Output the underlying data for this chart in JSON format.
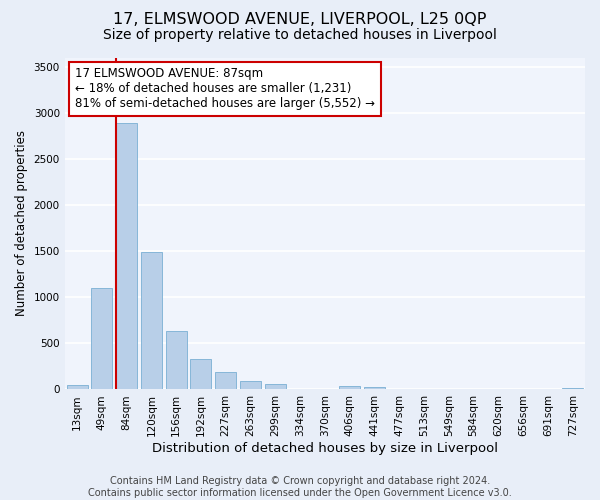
{
  "title": "17, ELMSWOOD AVENUE, LIVERPOOL, L25 0QP",
  "subtitle": "Size of property relative to detached houses in Liverpool",
  "xlabel": "Distribution of detached houses by size in Liverpool",
  "ylabel": "Number of detached properties",
  "categories": [
    "13sqm",
    "49sqm",
    "84sqm",
    "120sqm",
    "156sqm",
    "192sqm",
    "227sqm",
    "263sqm",
    "299sqm",
    "334sqm",
    "370sqm",
    "406sqm",
    "441sqm",
    "477sqm",
    "513sqm",
    "549sqm",
    "584sqm",
    "620sqm",
    "656sqm",
    "691sqm",
    "727sqm"
  ],
  "bar_values": [
    50,
    1100,
    2890,
    1490,
    630,
    330,
    190,
    95,
    60,
    5,
    5,
    35,
    25,
    5,
    5,
    5,
    5,
    5,
    5,
    5,
    20
  ],
  "bar_color": "#b8cfe8",
  "bar_edge_color": "#7aafd4",
  "property_line_color": "#cc0000",
  "annotation_line1": "17 ELMSWOOD AVENUE: 87sqm",
  "annotation_line2": "← 18% of detached houses are smaller (1,231)",
  "annotation_line3": "81% of semi-detached houses are larger (5,552) →",
  "annotation_box_color": "#ffffff",
  "annotation_box_edge_color": "#cc0000",
  "ylim": [
    0,
    3600
  ],
  "yticks": [
    0,
    500,
    1000,
    1500,
    2000,
    2500,
    3000,
    3500
  ],
  "footer_text": "Contains HM Land Registry data © Crown copyright and database right 2024.\nContains public sector information licensed under the Open Government Licence v3.0.",
  "bg_color": "#e8eef8",
  "plot_bg_color": "#f0f4fc",
  "grid_color": "#ffffff",
  "title_fontsize": 11.5,
  "subtitle_fontsize": 10,
  "xlabel_fontsize": 9.5,
  "ylabel_fontsize": 8.5,
  "tick_fontsize": 7.5,
  "footer_fontsize": 7,
  "annotation_fontsize": 8.5
}
